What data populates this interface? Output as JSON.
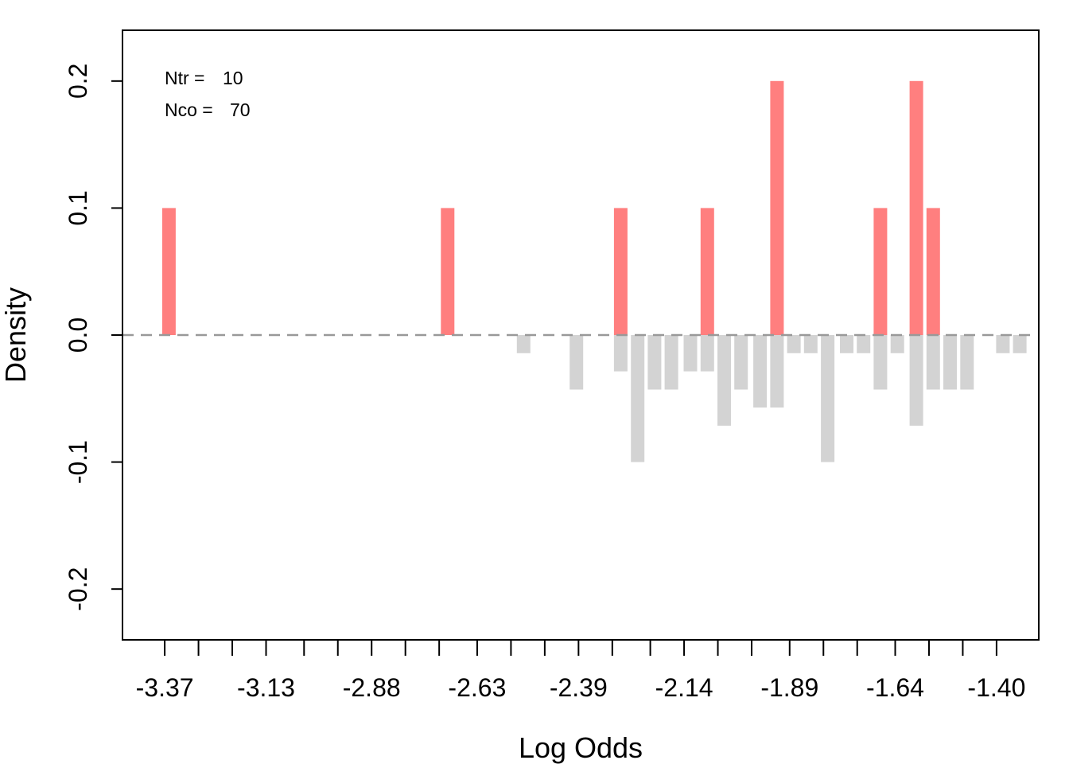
{
  "chart_data": {
    "type": "bar",
    "xlabel": "Log Odds",
    "ylabel": "Density",
    "ylim": [
      -0.24,
      0.24
    ],
    "xlim": [
      -3.47,
      -1.3
    ],
    "y_ticks": [
      -0.2,
      -0.1,
      0.0,
      0.1,
      0.2
    ],
    "y_tick_labels": [
      "-0.2",
      "-0.1",
      "0.0",
      "0.1",
      "0.2"
    ],
    "x_tick_labels": [
      {
        "value": -3.37,
        "label": "-3.37"
      },
      {
        "value": -3.13,
        "label": "-3.13"
      },
      {
        "value": -2.88,
        "label": "-2.88"
      },
      {
        "value": -2.63,
        "label": "-2.63"
      },
      {
        "value": -2.39,
        "label": "-2.39"
      },
      {
        "value": -2.14,
        "label": "-2.14"
      },
      {
        "value": -1.89,
        "label": "-1.89"
      },
      {
        "value": -1.64,
        "label": "-1.64"
      },
      {
        "value": -1.4,
        "label": "-1.40"
      }
    ],
    "minor_ticks": [
      -3.37,
      -3.29,
      -3.21,
      -3.13,
      -3.04,
      -2.96,
      -2.88,
      -2.8,
      -2.72,
      -2.63,
      -2.55,
      -2.47,
      -2.39,
      -2.31,
      -2.22,
      -2.14,
      -2.06,
      -1.98,
      -1.89,
      -1.81,
      -1.73,
      -1.64,
      -1.56,
      -1.48,
      -1.4
    ],
    "bar_width": 0.032,
    "reference_line": 0,
    "legend": {
      "placement": "top-left",
      "lines": [
        {
          "key": "Ntr = ",
          "value": "10"
        },
        {
          "key": "Nco = ",
          "value": "70"
        }
      ]
    },
    "series": [
      {
        "group": "treated",
        "color": "#ff7f7f",
        "bars": [
          {
            "x": -3.36,
            "y": 0.1
          },
          {
            "x": -2.7,
            "y": 0.1
          },
          {
            "x": -2.29,
            "y": 0.1
          },
          {
            "x": -2.085,
            "y": 0.1
          },
          {
            "x": -1.92,
            "y": 0.2
          },
          {
            "x": -1.675,
            "y": 0.1
          },
          {
            "x": -1.59,
            "y": 0.2
          },
          {
            "x": -1.55,
            "y": 0.1
          }
        ]
      },
      {
        "group": "control",
        "color": "#d3d3d3",
        "bars": [
          {
            "x": -2.52,
            "y": -0.0143
          },
          {
            "x": -2.395,
            "y": -0.0429
          },
          {
            "x": -2.29,
            "y": -0.0286
          },
          {
            "x": -2.25,
            "y": -0.1
          },
          {
            "x": -2.21,
            "y": -0.0429
          },
          {
            "x": -2.17,
            "y": -0.0429
          },
          {
            "x": -2.125,
            "y": -0.0286
          },
          {
            "x": -2.085,
            "y": -0.0286
          },
          {
            "x": -2.045,
            "y": -0.0714
          },
          {
            "x": -2.005,
            "y": -0.0429
          },
          {
            "x": -1.96,
            "y": -0.0571
          },
          {
            "x": -1.92,
            "y": -0.0571
          },
          {
            "x": -1.88,
            "y": -0.0143
          },
          {
            "x": -1.84,
            "y": -0.0143
          },
          {
            "x": -1.8,
            "y": -0.1
          },
          {
            "x": -1.755,
            "y": -0.0143
          },
          {
            "x": -1.715,
            "y": -0.0143
          },
          {
            "x": -1.675,
            "y": -0.0429
          },
          {
            "x": -1.635,
            "y": -0.0143
          },
          {
            "x": -1.59,
            "y": -0.0714
          },
          {
            "x": -1.55,
            "y": -0.0429
          },
          {
            "x": -1.51,
            "y": -0.0429
          },
          {
            "x": -1.47,
            "y": -0.0429
          },
          {
            "x": -1.385,
            "y": -0.0143
          },
          {
            "x": -1.345,
            "y": -0.0143
          }
        ]
      }
    ]
  }
}
